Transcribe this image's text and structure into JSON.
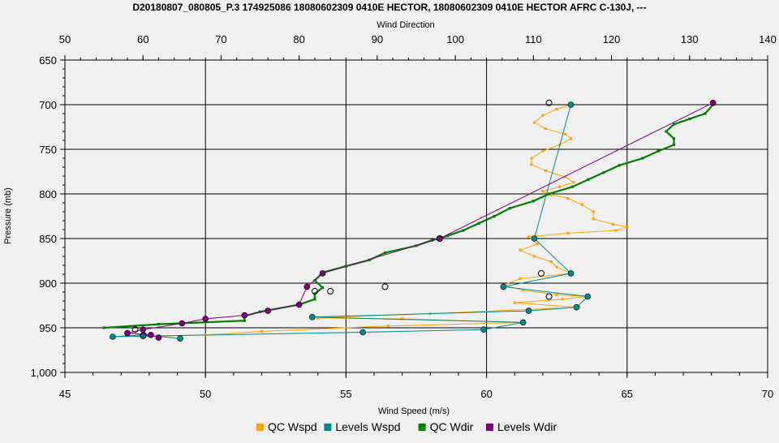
{
  "chart_data": {
    "type": "scatter",
    "title": "D20180807_080805_P.3 174925086 18080602309 0410E HECTOR, 18080602309 0410E HECTOR AFRC C-130J, ---",
    "x_top_label": "Wind Direction",
    "x_bottom_label": "Wind Speed (m/s)",
    "ylabel": "Pressure (mb)",
    "x_top_range": [
      50,
      140
    ],
    "x_top_ticks": [
      "50",
      "60",
      "70",
      "80",
      "90",
      "100",
      "110",
      "120",
      "130",
      "140"
    ],
    "x_bottom_range": [
      45,
      70
    ],
    "x_bottom_ticks": [
      "45",
      "50",
      "55",
      "60",
      "65",
      "70"
    ],
    "y_range": [
      1000,
      650
    ],
    "y_ticks": [
      "650",
      "700",
      "750",
      "800",
      "850",
      "900",
      "950",
      "1,000"
    ],
    "grid": true,
    "legend_position": "bottom",
    "series": [
      {
        "name": "QC Wspd",
        "axis": "bottom",
        "color": "#ffa500",
        "points": [
          [
            63.0,
            700
          ],
          [
            62.5,
            705
          ],
          [
            62.0,
            712
          ],
          [
            61.7,
            720
          ],
          [
            62.1,
            727
          ],
          [
            62.8,
            733
          ],
          [
            63.0,
            738
          ],
          [
            62.6,
            745
          ],
          [
            62.0,
            752
          ],
          [
            61.6,
            760
          ],
          [
            61.6,
            767
          ],
          [
            62.1,
            774
          ],
          [
            62.8,
            781
          ],
          [
            63.1,
            787
          ],
          [
            62.6,
            792
          ],
          [
            62.0,
            797
          ],
          [
            62.3,
            801
          ],
          [
            62.9,
            805
          ],
          [
            63.4,
            812
          ],
          [
            63.8,
            820
          ],
          [
            63.8,
            828
          ],
          [
            64.5,
            834
          ],
          [
            65.0,
            837
          ],
          [
            64.6,
            841
          ],
          [
            62.9,
            844
          ],
          [
            61.5,
            848
          ],
          [
            61.8,
            856
          ],
          [
            61.2,
            863
          ],
          [
            61.7,
            870
          ],
          [
            62.3,
            876
          ],
          [
            62.5,
            882
          ],
          [
            63.0,
            889
          ],
          [
            61.2,
            895
          ],
          [
            60.6,
            902
          ],
          [
            61.3,
            908
          ],
          [
            62.5,
            913
          ],
          [
            63.6,
            915
          ],
          [
            62.7,
            918
          ],
          [
            61.0,
            922
          ],
          [
            63.3,
            927
          ],
          [
            58.0,
            934
          ],
          [
            54.0,
            939
          ],
          [
            57.0,
            940
          ],
          [
            61.3,
            944
          ],
          [
            56.5,
            948
          ],
          [
            52.0,
            954
          ],
          [
            50.0,
            958
          ],
          [
            47.8,
            960
          ]
        ]
      },
      {
        "name": "Levels Wspd",
        "axis": "bottom",
        "color": "#008b8b",
        "points": [
          [
            63.0,
            700
          ],
          [
            61.7,
            850
          ],
          [
            63.0,
            889
          ],
          [
            60.6,
            904
          ],
          [
            63.6,
            915
          ],
          [
            63.2,
            927
          ],
          [
            61.5,
            931
          ],
          [
            53.8,
            938
          ],
          [
            61.3,
            944
          ],
          [
            59.9,
            952
          ],
          [
            55.6,
            955
          ],
          [
            46.7,
            960
          ],
          [
            47.8,
            958
          ],
          [
            49.1,
            962
          ]
        ]
      },
      {
        "name": "QC Wdir",
        "axis": "top",
        "color": "#008000",
        "points": [
          [
            133,
            700
          ],
          [
            132,
            710
          ],
          [
            130,
            716
          ],
          [
            128,
            722
          ],
          [
            127,
            730
          ],
          [
            128,
            738
          ],
          [
            128,
            745
          ],
          [
            126,
            752
          ],
          [
            124,
            760
          ],
          [
            121,
            768
          ],
          [
            119,
            776
          ],
          [
            117,
            784
          ],
          [
            115,
            792
          ],
          [
            112,
            800
          ],
          [
            110,
            808
          ],
          [
            107,
            816
          ],
          [
            105,
            825
          ],
          [
            103,
            833
          ],
          [
            101,
            841
          ],
          [
            99,
            847
          ],
          [
            97,
            852
          ],
          [
            95,
            858
          ],
          [
            91,
            866
          ],
          [
            89,
            874
          ],
          [
            86,
            881
          ],
          [
            83,
            888
          ],
          [
            82,
            897
          ],
          [
            83,
            905
          ],
          [
            82,
            912
          ],
          [
            82,
            918
          ],
          [
            80,
            924
          ],
          [
            75,
            932
          ],
          [
            73,
            937
          ],
          [
            73,
            942
          ],
          [
            62,
            946
          ],
          [
            55,
            950
          ]
        ]
      },
      {
        "name": "Levels Wdir",
        "axis": "top",
        "color": "#800080",
        "points": [
          [
            133,
            698
          ],
          [
            98,
            850
          ],
          [
            83,
            889
          ],
          [
            81,
            904
          ],
          [
            80,
            924
          ],
          [
            76,
            931
          ],
          [
            73,
            936
          ],
          [
            68,
            940
          ],
          [
            65,
            945
          ],
          [
            60,
            952
          ],
          [
            58,
            956
          ],
          [
            61,
            958
          ],
          [
            62,
            961
          ]
        ]
      }
    ],
    "open_circles": {
      "axis": "top",
      "color": "#000000",
      "points": [
        [
          112,
          698
        ],
        [
          98,
          850
        ],
        [
          111,
          889
        ],
        [
          91,
          904
        ],
        [
          82,
          909
        ],
        [
          112,
          915
        ],
        [
          84,
          909
        ],
        [
          59,
          952
        ],
        [
          60,
          959
        ]
      ]
    }
  }
}
